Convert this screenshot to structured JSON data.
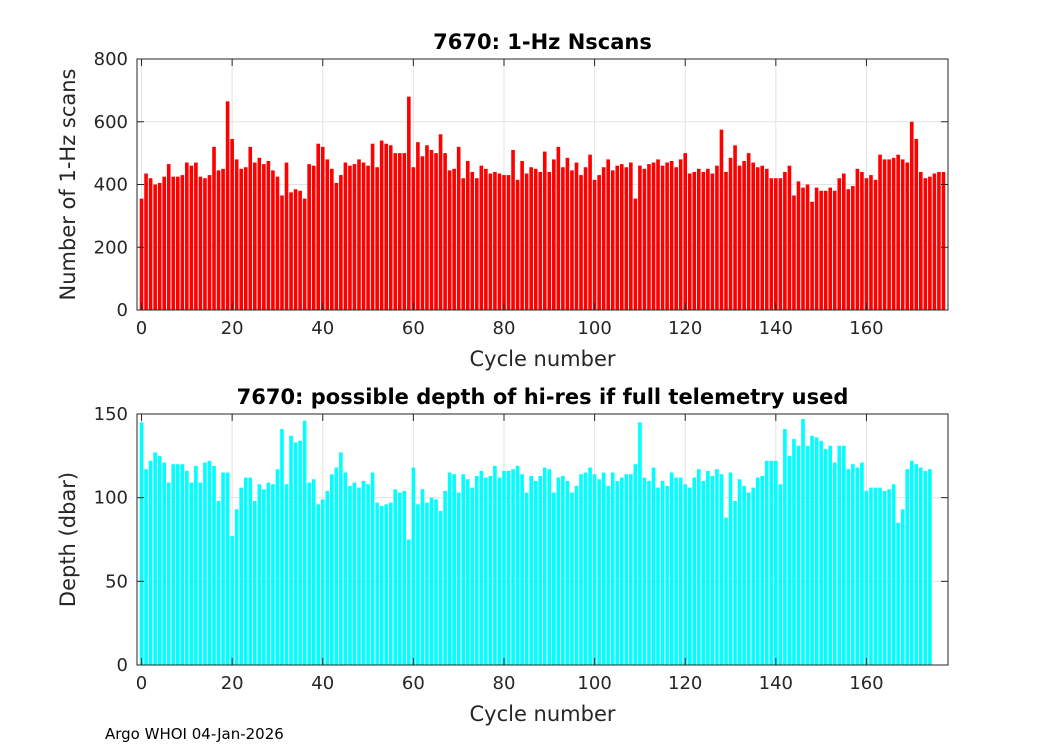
{
  "chart_data": [
    {
      "type": "bar",
      "title": "7670: 1-Hz Nscans",
      "xlabel": "Cycle number",
      "ylabel": "Number of 1-Hz scans",
      "color": "#ff0000",
      "xlim": [
        -1,
        178
      ],
      "ylim": [
        0,
        800
      ],
      "xticks": [
        0,
        20,
        40,
        60,
        80,
        100,
        120,
        140,
        160
      ],
      "yticks": [
        0,
        200,
        400,
        600,
        800
      ],
      "grid": true,
      "x_start": 0,
      "values": [
        355,
        435,
        420,
        400,
        405,
        425,
        465,
        425,
        425,
        430,
        470,
        460,
        470,
        425,
        420,
        430,
        520,
        445,
        450,
        665,
        545,
        480,
        450,
        455,
        520,
        470,
        485,
        465,
        475,
        445,
        425,
        365,
        470,
        375,
        385,
        380,
        355,
        465,
        460,
        530,
        520,
        480,
        450,
        405,
        430,
        470,
        460,
        465,
        480,
        470,
        460,
        530,
        455,
        540,
        530,
        525,
        500,
        500,
        500,
        680,
        455,
        535,
        490,
        525,
        510,
        500,
        560,
        500,
        445,
        450,
        520,
        420,
        475,
        440,
        420,
        460,
        450,
        435,
        440,
        435,
        430,
        430,
        510,
        415,
        475,
        435,
        455,
        450,
        440,
        505,
        440,
        480,
        520,
        455,
        485,
        445,
        470,
        430,
        455,
        495,
        415,
        430,
        455,
        480,
        445,
        460,
        465,
        455,
        470,
        355,
        460,
        450,
        465,
        470,
        480,
        460,
        470,
        475,
        455,
        480,
        500,
        435,
        440,
        450,
        440,
        450,
        435,
        460,
        575,
        440,
        485,
        525,
        460,
        475,
        500,
        470,
        455,
        460,
        450,
        420,
        420,
        420,
        440,
        460,
        365,
        410,
        390,
        400,
        345,
        390,
        380,
        380,
        390,
        380,
        420,
        435,
        385,
        395,
        450,
        440,
        420,
        430,
        415,
        495,
        480,
        480,
        485,
        495,
        480,
        470,
        600,
        545,
        440,
        420,
        425,
        435,
        440,
        440
      ]
    },
    {
      "type": "bar",
      "title": "7670: possible depth of hi-res if full telemetry used",
      "xlabel": "Cycle number",
      "ylabel": "Depth (dbar)",
      "color": "#00ffff",
      "xlim": [
        -1,
        178
      ],
      "ylim": [
        0,
        150
      ],
      "xticks": [
        0,
        20,
        40,
        60,
        80,
        100,
        120,
        140,
        160
      ],
      "yticks": [
        0,
        50,
        100,
        150
      ],
      "grid": true,
      "x_start": 0,
      "values": [
        145,
        117,
        122,
        127,
        125,
        121,
        109,
        120,
        120,
        120,
        116,
        109,
        119,
        109,
        121,
        122,
        119,
        98,
        115,
        115,
        77,
        93,
        106,
        112,
        112,
        98,
        108,
        105,
        109,
        108,
        117,
        141,
        108,
        137,
        133,
        134,
        146,
        109,
        111,
        96,
        99,
        104,
        114,
        118,
        127,
        115,
        107,
        109,
        106,
        110,
        108,
        115,
        97,
        95,
        96,
        97,
        105,
        103,
        104,
        75,
        118,
        96,
        105,
        97,
        100,
        99,
        92,
        104,
        115,
        114,
        103,
        114,
        111,
        106,
        113,
        116,
        112,
        113,
        119,
        112,
        116,
        116,
        117,
        119,
        114,
        103,
        113,
        110,
        113,
        118,
        117,
        103,
        112,
        113,
        110,
        103,
        107,
        114,
        115,
        118,
        114,
        111,
        115,
        107,
        115,
        110,
        112,
        114,
        114,
        120,
        145,
        112,
        110,
        118,
        106,
        110,
        107,
        115,
        112,
        112,
        108,
        106,
        112,
        117,
        110,
        116,
        113,
        117,
        114,
        88,
        115,
        98,
        111,
        107,
        103,
        106,
        112,
        113,
        122,
        122,
        122,
        108,
        141,
        125,
        135,
        131,
        147,
        131,
        137,
        136,
        134,
        129,
        131,
        121,
        131,
        131,
        117,
        120,
        118,
        121,
        104,
        106,
        106,
        106,
        104,
        105,
        108,
        85,
        93,
        117,
        122,
        120,
        118,
        116,
        117
      ]
    }
  ],
  "footer": {
    "label": "Argo WHOI 04-Jan-2026"
  }
}
